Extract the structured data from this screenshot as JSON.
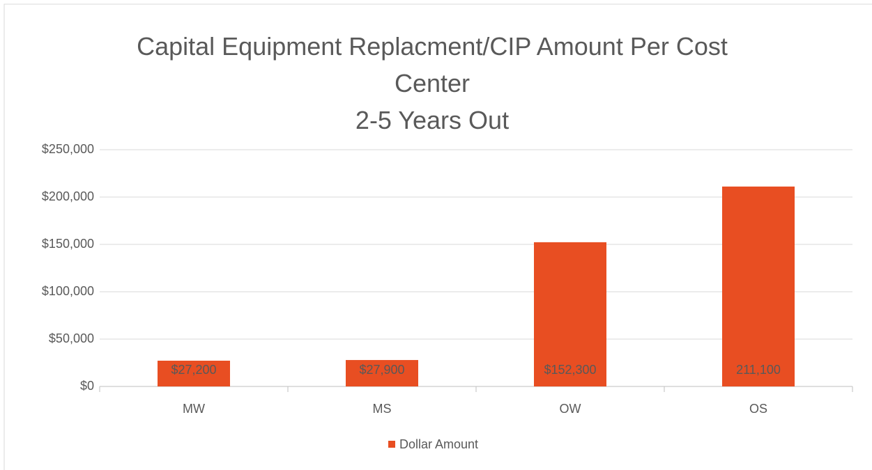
{
  "chart_data": {
    "type": "bar",
    "title": "Capital Equipment Replacment/CIP Amount Per Cost Center",
    "subtitle": "2-5 Years Out",
    "categories": [
      "MW",
      "MS",
      "OW",
      "OS"
    ],
    "series": [
      {
        "name": "Dollar Amount",
        "color": "#e84e22",
        "values": [
          27200,
          27900,
          152300,
          211100
        ],
        "value_labels": [
          "$27,200",
          "$27,900",
          "$152,300",
          "211,100"
        ]
      }
    ],
    "ylim": [
      0,
      250000
    ],
    "yticks": [
      {
        "value": 0,
        "label": "$0"
      },
      {
        "value": 50000,
        "label": "$50,000"
      },
      {
        "value": 100000,
        "label": "$100,000"
      },
      {
        "value": 150000,
        "label": "$150,000"
      },
      {
        "value": 200000,
        "label": "$200,000"
      },
      {
        "value": 250000,
        "label": "$250,000"
      }
    ],
    "grid": true,
    "legend": "bottom"
  }
}
